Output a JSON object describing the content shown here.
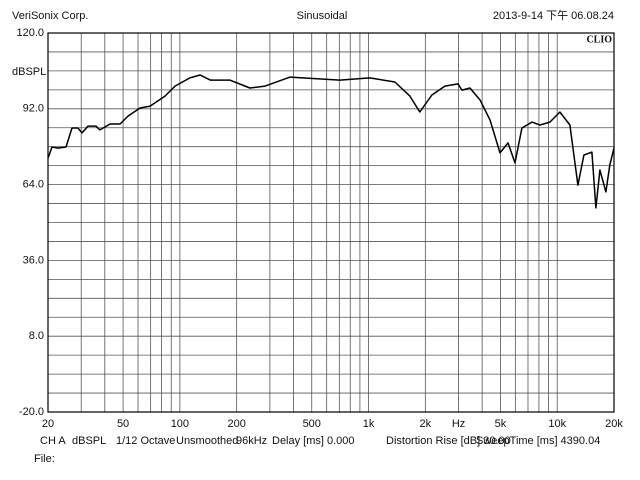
{
  "chart_data": {
    "type": "line",
    "header_left": "VeriSonix Corp.",
    "title": "Sinusoidal",
    "header_right": "2013-9-14 下午 06.08.24",
    "logo": "CLIO",
    "ylabel": "dBSPL",
    "xlog": true,
    "grid": true,
    "color": "#000000",
    "xlim": [
      20,
      20000
    ],
    "ylim": [
      -20,
      120
    ],
    "xticks": [
      20,
      50,
      100,
      200,
      500,
      {
        "value": 1000,
        "label": "1k"
      },
      {
        "value": 2000,
        "label": "2k"
      },
      {
        "value": 3000,
        "label": "Hz"
      },
      {
        "value": 5000,
        "label": "5k"
      },
      {
        "value": 10000,
        "label": "10k"
      },
      {
        "value": 20000,
        "label": "20k"
      }
    ],
    "xminor_ticks": [
      30,
      40,
      60,
      70,
      80,
      90,
      300,
      400,
      600,
      700,
      800,
      900,
      4000,
      6000,
      7000,
      8000,
      9000
    ],
    "yticks": [
      {
        "value": -20,
        "label": "-20.0"
      },
      {
        "value": 8,
        "label": "8.0"
      },
      {
        "value": 36,
        "label": "36.0"
      },
      {
        "value": 64,
        "label": "64.0"
      },
      {
        "value": 92,
        "label": "92.0"
      },
      {
        "value": 120,
        "label": "120.0"
      }
    ],
    "yminor_ticks": [
      -13,
      -6,
      1,
      15,
      22,
      29,
      43,
      50,
      57,
      71,
      78,
      85,
      99,
      106,
      113
    ],
    "x": [
      20,
      21,
      22.6,
      24.9,
      26.8,
      28.8,
      30.3,
      32.6,
      35.9,
      37.7,
      42.6,
      48.2,
      53.1,
      61.5,
      69.5,
      83.4,
      94.2,
      113,
      128,
      145,
      184,
      235,
      283,
      384,
      705,
      1017,
      1380,
      1656,
      1870,
      2168,
      2541,
      2979,
      3127,
      3450,
      3900,
      4405,
      4977,
      5484,
      5974,
      6503,
      7344,
      8093,
      9142,
      10330,
      11670,
      12880,
      13850,
      15280,
      16040,
      16830,
      18120,
      19010,
      20000
    ],
    "values": [
      73.8,
      77.9,
      77.5,
      77.9,
      84.9,
      84.9,
      83.1,
      85.6,
      85.6,
      84.2,
      86.4,
      86.4,
      89.3,
      92.3,
      93.0,
      96.7,
      100.4,
      103.4,
      104.5,
      102.6,
      102.6,
      99.7,
      100.4,
      103.7,
      102.6,
      103.4,
      101.9,
      96.7,
      90.8,
      97.1,
      100.4,
      101.2,
      98.9,
      99.7,
      95.2,
      87.9,
      75.7,
      79.4,
      72.0,
      84.9,
      87.1,
      86.0,
      87.1,
      90.8,
      86.0,
      63.8,
      74.9,
      76.0,
      55.4,
      69.4,
      61.3,
      71.2,
      77.5
    ],
    "footer": [
      "CH A",
      "dBSPL",
      "1/12 Octave",
      "Unsmoothed",
      "96kHz",
      "Delay [ms] 0.000",
      "Distortion Rise [dB] 30.00",
      "SweepTime [ms] 4390.04"
    ],
    "file_label": "File:"
  }
}
